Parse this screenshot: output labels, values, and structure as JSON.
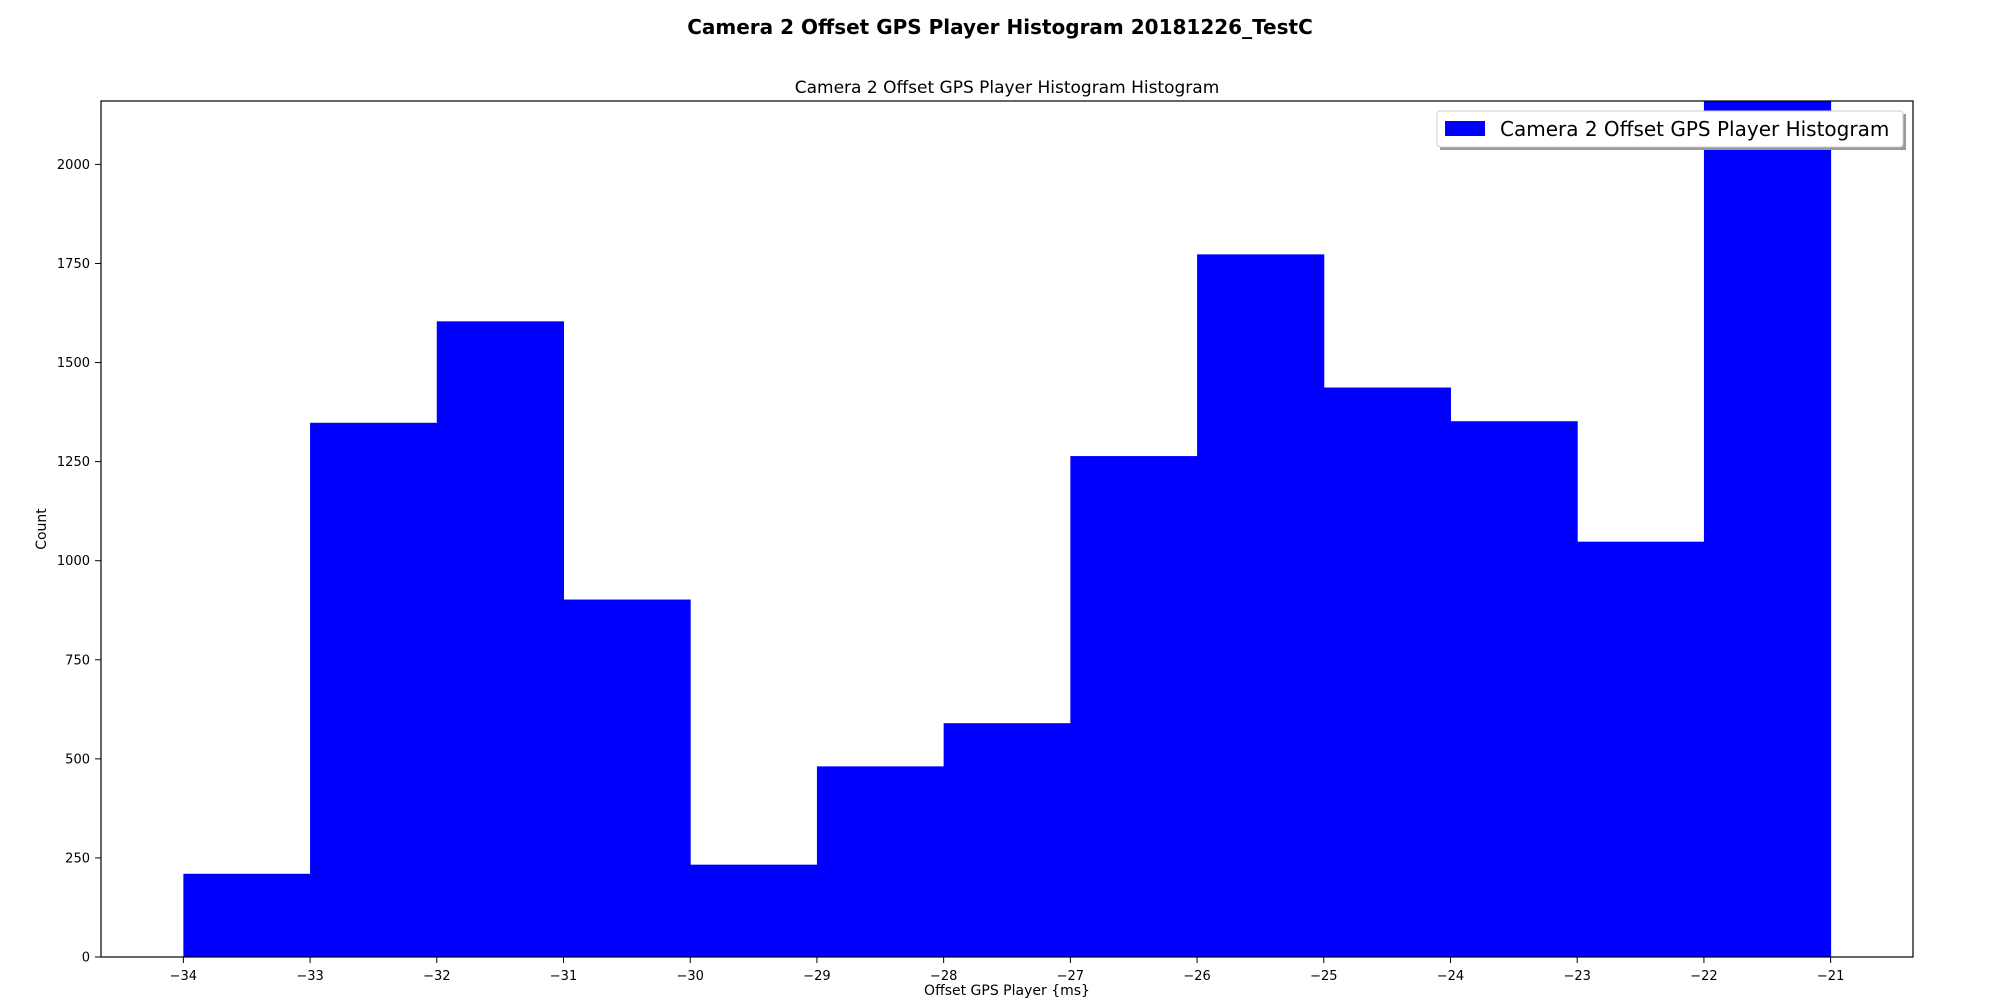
{
  "figure": {
    "suptitle": "Camera 2 Offset GPS Player Histogram 20181226_TestC"
  },
  "chart_data": {
    "type": "bar",
    "title": "Camera 2 Offset GPS Player Histogram Histogram",
    "xlabel": "Offset GPS Player {ms}",
    "ylabel": "Count",
    "xlim": [
      -34.65,
      -20.35
    ],
    "ylim": [
      0,
      2160
    ],
    "x_ticks": [
      -34,
      -33,
      -32,
      -31,
      -30,
      -29,
      -28,
      -27,
      -26,
      -25,
      -24,
      -23,
      -22,
      -21
    ],
    "x_tick_labels": [
      "−34",
      "−33",
      "−32",
      "−31",
      "−30",
      "−29",
      "−28",
      "−27",
      "−26",
      "−25",
      "−24",
      "−23",
      "−22",
      "−21"
    ],
    "y_ticks": [
      0,
      250,
      500,
      750,
      1000,
      1250,
      1500,
      1750,
      2000
    ],
    "y_tick_labels": [
      "0",
      "250",
      "500",
      "750",
      "1000",
      "1250",
      "1500",
      "1750",
      "2000"
    ],
    "bin_edges": [
      -34,
      -33,
      -32,
      -31,
      -30,
      -29,
      -28,
      -27,
      -26,
      -25,
      -24,
      -23,
      -22,
      -21
    ],
    "counts": [
      210,
      1348,
      1604,
      902,
      233,
      481,
      590,
      1264,
      1773,
      1437,
      1352,
      1048,
      2195
    ],
    "color": "#0000ff",
    "grid": false,
    "legend": {
      "label": "Camera 2 Offset GPS Player Histogram",
      "placement": "top-right"
    }
  }
}
